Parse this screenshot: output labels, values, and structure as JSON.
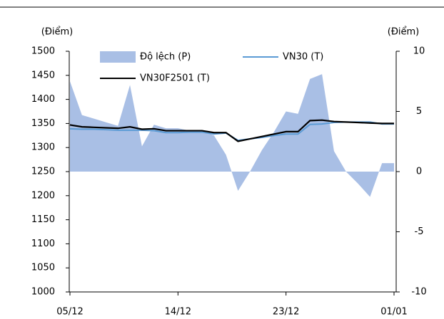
{
  "chart_data": {
    "type": "combo",
    "ylabel": "(Điểm)",
    "y2label": "(Điểm)",
    "categories": [
      "05/12",
      null,
      null,
      null,
      null,
      null,
      null,
      null,
      null,
      "14/12",
      null,
      null,
      null,
      null,
      null,
      null,
      null,
      null,
      "23/12",
      null,
      null,
      null,
      null,
      null,
      null,
      null,
      null,
      "01/01"
    ],
    "ylim": [
      1000,
      1500
    ],
    "yticks": [
      1000,
      1050,
      1100,
      1150,
      1200,
      1250,
      1300,
      1350,
      1400,
      1450,
      1500
    ],
    "y2lim": [
      -10,
      10
    ],
    "y2ticks": [
      -10,
      -5,
      0,
      5,
      10
    ],
    "series": [
      {
        "name": "Độ lệch (P)",
        "type": "area",
        "axis": "y2",
        "color": "#a9bfe5",
        "values": [
          7.5,
          4.7,
          4.4,
          4.1,
          3.8,
          7.2,
          2.1,
          3.9,
          3.6,
          3.6,
          3.4,
          3.4,
          3.0,
          1.4,
          -1.6,
          0,
          1.8,
          3.3,
          5.0,
          4.8,
          7.7,
          8.1,
          1.7,
          0,
          -1.0,
          -2.1,
          0.7,
          0.7
        ]
      },
      {
        "name": "VN30 (T)",
        "type": "line",
        "color": "#5b9bd5",
        "values": [
          1339,
          1338,
          1338,
          1337,
          1336,
          1336,
          1336,
          1335,
          1331,
          1331,
          1332,
          1332,
          1328,
          1330,
          1315,
          1318,
          1321,
          1325,
          1328,
          1328,
          1348,
          1349,
          1352,
          1353,
          1353,
          1353,
          1349,
          1349
        ]
      },
      {
        "name": "VN30F2501 (T)",
        "type": "line",
        "color": "#000000",
        "values": [
          1347,
          1343,
          1342,
          1341,
          1340,
          1343,
          1338,
          1339,
          1335,
          1335,
          1335,
          1335,
          1331,
          1331,
          1313,
          1318,
          1323,
          1328,
          1333,
          1333,
          1356,
          1357,
          1354,
          1353,
          1352,
          1351,
          1350,
          1350
        ]
      }
    ]
  }
}
